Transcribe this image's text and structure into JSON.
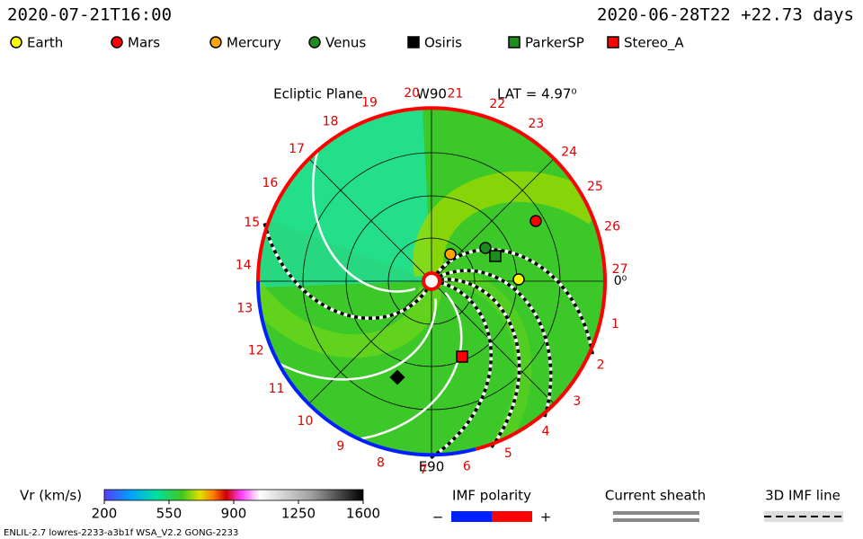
{
  "header": {
    "time": "2020-07-21T16:00",
    "reference": "2020-06-28T22 +22.73 days"
  },
  "legend": [
    {
      "label": "Earth",
      "color": "#ffff00",
      "shape": "circle"
    },
    {
      "label": "Mars",
      "color": "#ff0000",
      "shape": "circle"
    },
    {
      "label": "Mercury",
      "color": "#ffa500",
      "shape": "circle"
    },
    {
      "label": "Venus",
      "color": "#1e8c1e",
      "shape": "circle"
    },
    {
      "label": "Osiris",
      "color": "#000000",
      "shape": "square"
    },
    {
      "label": "ParkerSP",
      "color": "#1e8c1e",
      "shape": "square"
    },
    {
      "label": "Stereo_A",
      "color": "#ff0000",
      "shape": "square"
    }
  ],
  "plot": {
    "plane": "Ecliptic Plane",
    "top_label": "W90",
    "lat": "LAT = 4.97⁰",
    "bottom_label": "E90",
    "rim_labels": [
      "0⁰",
      "1",
      "2",
      "3",
      "4",
      "5",
      "6",
      "7",
      "8",
      "9",
      "10",
      "11",
      "12",
      "13",
      "14",
      "15",
      "16",
      "17",
      "18",
      "19",
      "20",
      "21",
      "22",
      "23",
      "24",
      "25",
      "26",
      "27"
    ]
  },
  "colorbar": {
    "title": "Vr (km/s)",
    "lim": [
      200,
      1600
    ],
    "ticks": [
      200,
      550,
      900,
      1250,
      1600
    ]
  },
  "polarity": {
    "title": "IMF polarity",
    "minus": "−",
    "plus": "+"
  },
  "sheath": {
    "title": "Current sheath"
  },
  "imf_line": {
    "title": "3D IMF line"
  },
  "footer": "ENLIL-2.7 lowres-2233-a3b1f WSA_V2.2 GONG-2233"
}
